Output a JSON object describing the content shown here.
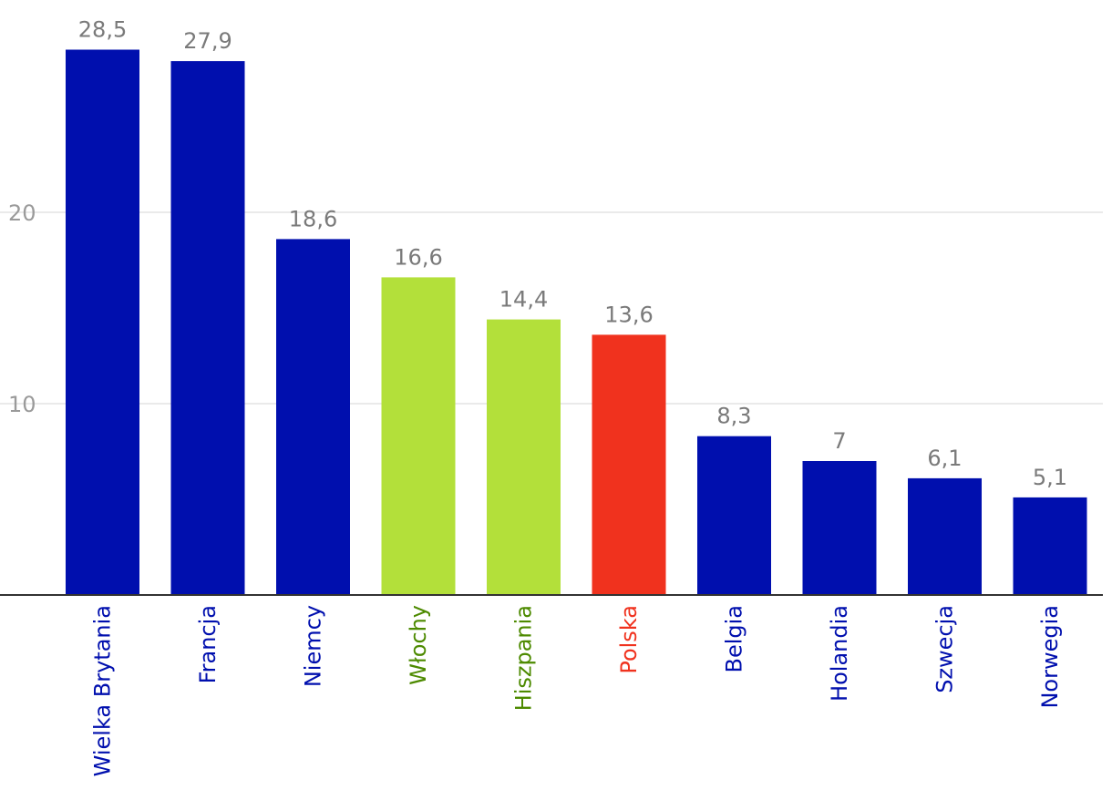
{
  "chart_data": {
    "type": "bar",
    "title": "",
    "xlabel": "",
    "ylabel": "",
    "ylim": [
      0,
      30
    ],
    "yticks": [
      10,
      20
    ],
    "ytick_labels": [
      "10",
      "20"
    ],
    "categories": [
      "Wielka Brytania",
      "Francja",
      "Niemcy",
      "Włochy",
      "Hiszpania",
      "Polska",
      "Belgia",
      "Holandia",
      "Szwecja",
      "Norwegia"
    ],
    "values": [
      28.5,
      27.9,
      18.6,
      16.6,
      14.4,
      13.6,
      8.3,
      7,
      6.1,
      5.1
    ],
    "value_labels": [
      "28,5",
      "27,9",
      "18,6",
      "16,6",
      "14,4",
      "13,6",
      "8,3",
      "7",
      "6,1",
      "5,1"
    ],
    "bar_colors": [
      "#000fae",
      "#000fae",
      "#000fae",
      "#b3e03a",
      "#b3e03a",
      "#f0321e",
      "#000fae",
      "#000fae",
      "#000fae",
      "#000fae"
    ],
    "label_colors": [
      "#000fae",
      "#000fae",
      "#000fae",
      "#4d8a00",
      "#4d8a00",
      "#f0321e",
      "#000fae",
      "#000fae",
      "#000fae",
      "#000fae"
    ],
    "grid": true,
    "legend": "none"
  }
}
